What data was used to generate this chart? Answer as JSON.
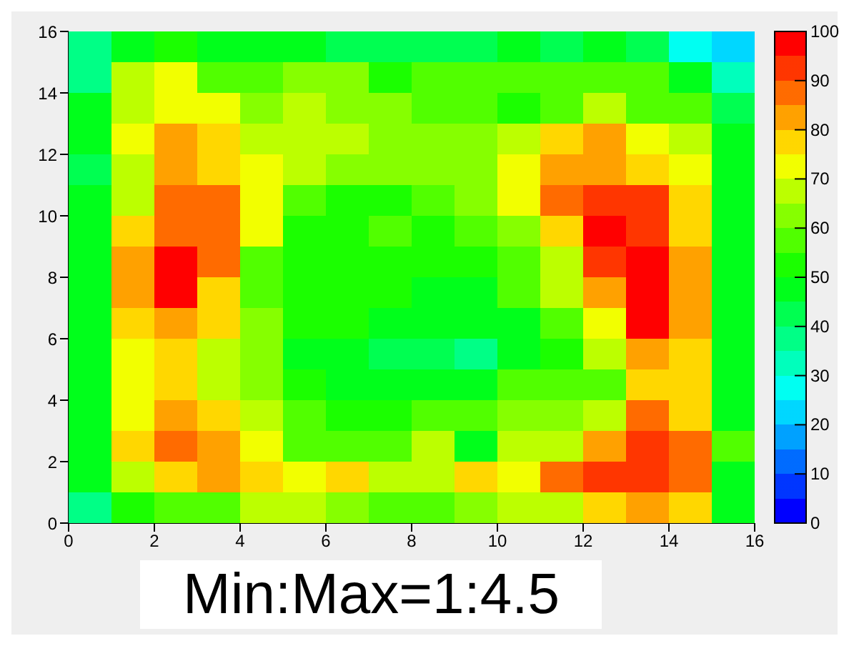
{
  "chart_data": {
    "type": "heatmap",
    "xlim": [
      0,
      16
    ],
    "xticks": [
      0,
      2,
      4,
      6,
      8,
      10,
      12,
      14,
      16
    ],
    "ylim": [
      0,
      16
    ],
    "yticks": [
      0,
      2,
      4,
      6,
      8,
      10,
      12,
      14,
      16
    ],
    "clim": [
      0,
      100
    ],
    "cticks": [
      0,
      10,
      20,
      30,
      40,
      50,
      60,
      70,
      80,
      90,
      100
    ],
    "annotations": [
      "Min:Max=1:4.5"
    ],
    "cells": [
      [
        38,
        47,
        50,
        47,
        47,
        47,
        40,
        40,
        40,
        40,
        47,
        40,
        47,
        40,
        28,
        20
      ],
      [
        38,
        65,
        70,
        58,
        57,
        60,
        60,
        52,
        57,
        57,
        58,
        58,
        58,
        58,
        48,
        30
      ],
      [
        45,
        65,
        70,
        70,
        60,
        65,
        62,
        60,
        58,
        55,
        50,
        57,
        67,
        58,
        57,
        40
      ],
      [
        45,
        70,
        80,
        75,
        66,
        65,
        65,
        62,
        60,
        60,
        65,
        75,
        80,
        70,
        66,
        47
      ],
      [
        43,
        65,
        80,
        75,
        70,
        65,
        63,
        60,
        60,
        60,
        70,
        80,
        80,
        75,
        70,
        47
      ],
      [
        45,
        65,
        85,
        85,
        70,
        58,
        52,
        52,
        55,
        62,
        70,
        85,
        90,
        90,
        75,
        47
      ],
      [
        48,
        75,
        85,
        85,
        70,
        52,
        52,
        57,
        52,
        55,
        62,
        75,
        95,
        90,
        75,
        47
      ],
      [
        48,
        80,
        95,
        85,
        58,
        52,
        52,
        52,
        52,
        52,
        58,
        65,
        90,
        95,
        80,
        47
      ],
      [
        48,
        80,
        95,
        75,
        58,
        52,
        50,
        50,
        45,
        48,
        55,
        65,
        80,
        95,
        80,
        48
      ],
      [
        48,
        75,
        80,
        75,
        60,
        52,
        50,
        48,
        45,
        48,
        48,
        57,
        70,
        95,
        80,
        48
      ],
      [
        48,
        70,
        75,
        67,
        60,
        45,
        45,
        40,
        40,
        38,
        45,
        50,
        65,
        80,
        75,
        48
      ],
      [
        48,
        70,
        75,
        68,
        60,
        50,
        48,
        48,
        45,
        48,
        55,
        57,
        57,
        75,
        75,
        48
      ],
      [
        48,
        70,
        80,
        75,
        67,
        57,
        50,
        50,
        55,
        57,
        60,
        63,
        65,
        85,
        75,
        48
      ],
      [
        48,
        75,
        85,
        80,
        70,
        58,
        57,
        55,
        65,
        48,
        67,
        67,
        80,
        90,
        85,
        55
      ],
      [
        45,
        65,
        75,
        80,
        75,
        70,
        75,
        67,
        67,
        75,
        70,
        85,
        90,
        90,
        85,
        48
      ],
      [
        38,
        50,
        58,
        58,
        65,
        65,
        60,
        58,
        58,
        62,
        68,
        68,
        75,
        82,
        75,
        48
      ]
    ]
  }
}
